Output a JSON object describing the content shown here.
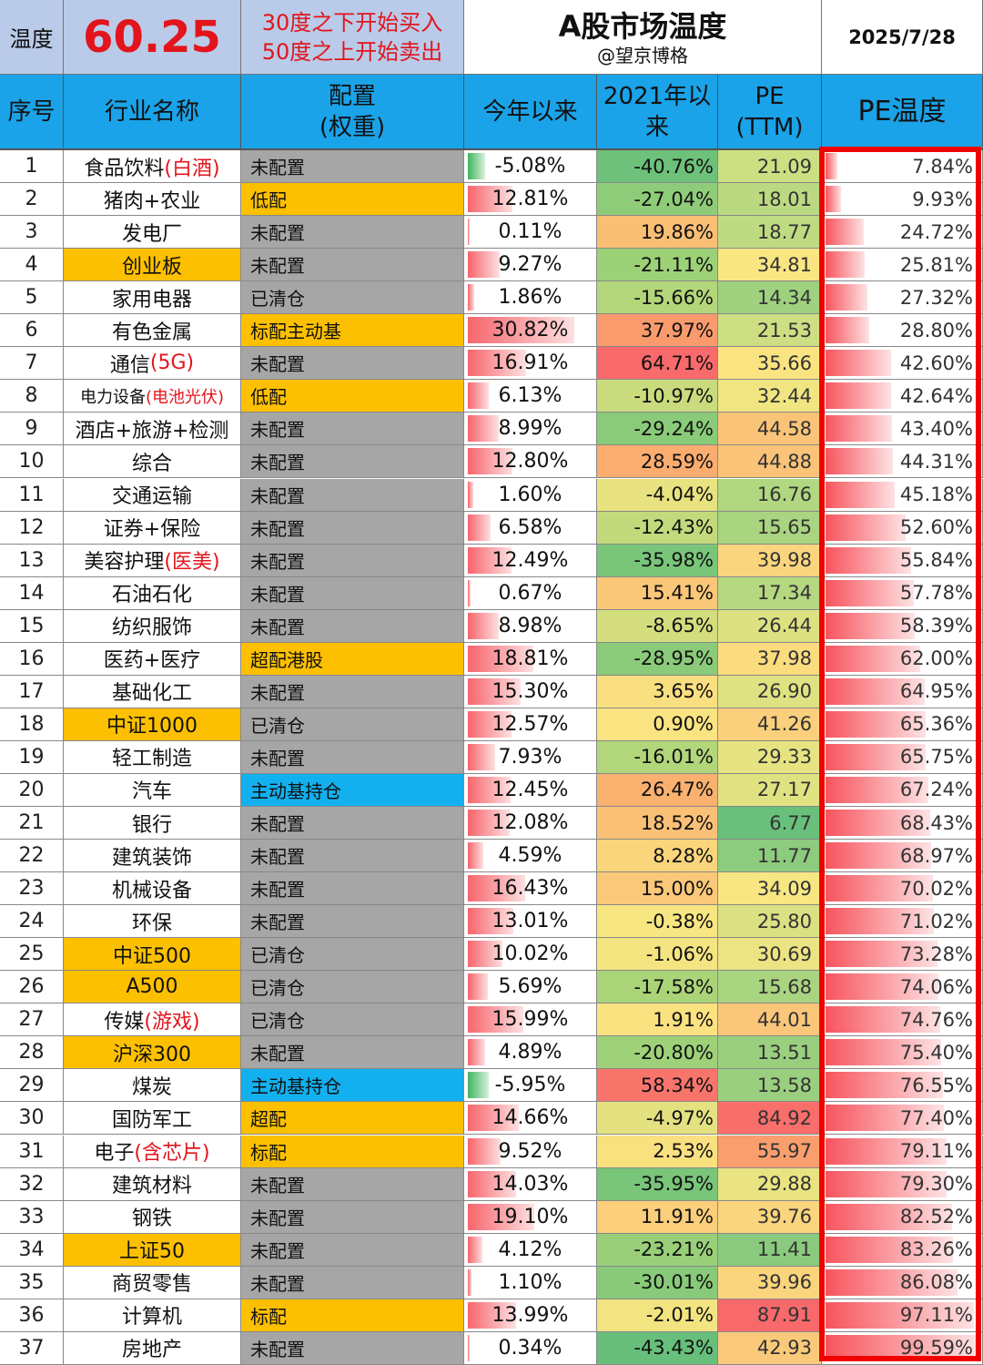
{
  "header": {
    "temp_label": "温度",
    "temp_value": "60.25",
    "rule_buy": "30度之下开始买入",
    "rule_sell": "50度之上开始卖出",
    "title": "A股市场温度",
    "author": "@望京博格",
    "date": "2025/7/28"
  },
  "columns": {
    "idx": "序号",
    "name": "行业名称",
    "alloc_1": "配置",
    "alloc_2": "(权重)",
    "ytd": "今年以来",
    "since2021_1": "2021年以",
    "since2021_2": "来",
    "pe_1": "PE",
    "pe_2": "(TTM)",
    "pe_temp": "PE温度"
  },
  "colors": {
    "header_blue": "#1aa3e8",
    "highlight_orange": "#fdc000",
    "alloc_gray": "#a6a6a6",
    "alloc_blue": "#13b0ef",
    "red_text": "#e3141c",
    "frame_red": "#f00100"
  },
  "rows": [
    {
      "idx": "1",
      "name": "食品饮料",
      "name_red": "(白酒)",
      "hl": false,
      "alloc": "未配置",
      "alloc_color": "gray",
      "ytd": "-5.08%",
      "ytd_val": -5.08,
      "s2021": "-40.76%",
      "s2021_val": -40.76,
      "pe": "21.09",
      "pe_val": 21.09,
      "temp": "7.84%",
      "temp_val": 7.84
    },
    {
      "idx": "2",
      "name": "猪肉+农业",
      "name_red": "",
      "hl": false,
      "alloc": "低配",
      "alloc_color": "orange",
      "ytd": "12.81%",
      "ytd_val": 12.81,
      "s2021": "-27.04%",
      "s2021_val": -27.04,
      "pe": "18.01",
      "pe_val": 18.01,
      "temp": "9.93%",
      "temp_val": 9.93
    },
    {
      "idx": "3",
      "name": "发电厂",
      "name_red": "",
      "hl": false,
      "alloc": "未配置",
      "alloc_color": "gray",
      "ytd": "0.11%",
      "ytd_val": 0.11,
      "s2021": "19.86%",
      "s2021_val": 19.86,
      "pe": "18.77",
      "pe_val": 18.77,
      "temp": "24.72%",
      "temp_val": 24.72
    },
    {
      "idx": "4",
      "name": "创业板",
      "name_red": "",
      "hl": true,
      "alloc": "未配置",
      "alloc_color": "gray",
      "ytd": "9.27%",
      "ytd_val": 9.27,
      "s2021": "-21.11%",
      "s2021_val": -21.11,
      "pe": "34.81",
      "pe_val": 34.81,
      "temp": "25.81%",
      "temp_val": 25.81
    },
    {
      "idx": "5",
      "name": "家用电器",
      "name_red": "",
      "hl": false,
      "alloc": "已清仓",
      "alloc_color": "gray",
      "ytd": "1.86%",
      "ytd_val": 1.86,
      "s2021": "-15.66%",
      "s2021_val": -15.66,
      "pe": "14.34",
      "pe_val": 14.34,
      "temp": "27.32%",
      "temp_val": 27.32
    },
    {
      "idx": "6",
      "name": "有色金属",
      "name_red": "",
      "hl": false,
      "alloc": "标配主动基",
      "alloc_color": "orange",
      "ytd": "30.82%",
      "ytd_val": 30.82,
      "s2021": "37.97%",
      "s2021_val": 37.97,
      "pe": "21.53",
      "pe_val": 21.53,
      "temp": "28.80%",
      "temp_val": 28.8
    },
    {
      "idx": "7",
      "name": "通信",
      "name_red": "(5G)",
      "hl": false,
      "alloc": "未配置",
      "alloc_color": "gray",
      "ytd": "16.91%",
      "ytd_val": 16.91,
      "s2021": "64.71%",
      "s2021_val": 64.71,
      "pe": "35.66",
      "pe_val": 35.66,
      "temp": "42.60%",
      "temp_val": 42.6
    },
    {
      "idx": "8",
      "name": "电力设备",
      "name_red": "(电池光伏)",
      "hl": false,
      "small": true,
      "alloc": "低配",
      "alloc_color": "orange",
      "ytd": "6.13%",
      "ytd_val": 6.13,
      "s2021": "-10.97%",
      "s2021_val": -10.97,
      "pe": "32.44",
      "pe_val": 32.44,
      "temp": "42.64%",
      "temp_val": 42.64
    },
    {
      "idx": "9",
      "name": "酒店+旅游+检测",
      "name_red": "",
      "hl": false,
      "alloc": "未配置",
      "alloc_color": "gray",
      "ytd": "8.99%",
      "ytd_val": 8.99,
      "s2021": "-29.24%",
      "s2021_val": -29.24,
      "pe": "44.58",
      "pe_val": 44.58,
      "temp": "43.40%",
      "temp_val": 43.4
    },
    {
      "idx": "10",
      "name": "综合",
      "name_red": "",
      "hl": false,
      "alloc": "未配置",
      "alloc_color": "gray",
      "ytd": "12.80%",
      "ytd_val": 12.8,
      "s2021": "28.59%",
      "s2021_val": 28.59,
      "pe": "44.88",
      "pe_val": 44.88,
      "temp": "44.31%",
      "temp_val": 44.31
    },
    {
      "idx": "11",
      "name": "交通运输",
      "name_red": "",
      "hl": false,
      "alloc": "未配置",
      "alloc_color": "gray",
      "ytd": "1.60%",
      "ytd_val": 1.6,
      "s2021": "-4.04%",
      "s2021_val": -4.04,
      "pe": "16.76",
      "pe_val": 16.76,
      "temp": "45.18%",
      "temp_val": 45.18
    },
    {
      "idx": "12",
      "name": "证券+保险",
      "name_red": "",
      "hl": false,
      "alloc": "未配置",
      "alloc_color": "gray",
      "ytd": "6.58%",
      "ytd_val": 6.58,
      "s2021": "-12.43%",
      "s2021_val": -12.43,
      "pe": "15.65",
      "pe_val": 15.65,
      "temp": "52.60%",
      "temp_val": 52.6
    },
    {
      "idx": "13",
      "name": "美容护理",
      "name_red": "(医美)",
      "hl": false,
      "alloc": "未配置",
      "alloc_color": "gray",
      "ytd": "12.49%",
      "ytd_val": 12.49,
      "s2021": "-35.98%",
      "s2021_val": -35.98,
      "pe": "39.98",
      "pe_val": 39.98,
      "temp": "55.84%",
      "temp_val": 55.84
    },
    {
      "idx": "14",
      "name": "石油石化",
      "name_red": "",
      "hl": false,
      "alloc": "未配置",
      "alloc_color": "gray",
      "ytd": "0.67%",
      "ytd_val": 0.67,
      "s2021": "15.41%",
      "s2021_val": 15.41,
      "pe": "17.34",
      "pe_val": 17.34,
      "temp": "57.78%",
      "temp_val": 57.78
    },
    {
      "idx": "15",
      "name": "纺织服饰",
      "name_red": "",
      "hl": false,
      "alloc": "未配置",
      "alloc_color": "gray",
      "ytd": "8.98%",
      "ytd_val": 8.98,
      "s2021": "-8.65%",
      "s2021_val": -8.65,
      "pe": "26.44",
      "pe_val": 26.44,
      "temp": "58.39%",
      "temp_val": 58.39
    },
    {
      "idx": "16",
      "name": "医药+医疗",
      "name_red": "",
      "hl": false,
      "alloc": "超配港股",
      "alloc_color": "orange",
      "ytd": "18.81%",
      "ytd_val": 18.81,
      "s2021": "-28.95%",
      "s2021_val": -28.95,
      "pe": "37.98",
      "pe_val": 37.98,
      "temp": "62.00%",
      "temp_val": 62.0
    },
    {
      "idx": "17",
      "name": "基础化工",
      "name_red": "",
      "hl": false,
      "alloc": "未配置",
      "alloc_color": "gray",
      "ytd": "15.30%",
      "ytd_val": 15.3,
      "s2021": "3.65%",
      "s2021_val": 3.65,
      "pe": "26.90",
      "pe_val": 26.9,
      "temp": "64.95%",
      "temp_val": 64.95
    },
    {
      "idx": "18",
      "name": "中证1000",
      "name_red": "",
      "hl": true,
      "alloc": "已清仓",
      "alloc_color": "gray",
      "ytd": "12.57%",
      "ytd_val": 12.57,
      "s2021": "0.90%",
      "s2021_val": 0.9,
      "pe": "41.26",
      "pe_val": 41.26,
      "temp": "65.36%",
      "temp_val": 65.36
    },
    {
      "idx": "19",
      "name": "轻工制造",
      "name_red": "",
      "hl": false,
      "alloc": "未配置",
      "alloc_color": "gray",
      "ytd": "7.93%",
      "ytd_val": 7.93,
      "s2021": "-16.01%",
      "s2021_val": -16.01,
      "pe": "29.33",
      "pe_val": 29.33,
      "temp": "65.75%",
      "temp_val": 65.75
    },
    {
      "idx": "20",
      "name": "汽车",
      "name_red": "",
      "hl": false,
      "alloc": "主动基持仓",
      "alloc_color": "blue",
      "ytd": "12.45%",
      "ytd_val": 12.45,
      "s2021": "26.47%",
      "s2021_val": 26.47,
      "pe": "27.17",
      "pe_val": 27.17,
      "temp": "67.24%",
      "temp_val": 67.24
    },
    {
      "idx": "21",
      "name": "银行",
      "name_red": "",
      "hl": false,
      "alloc": "未配置",
      "alloc_color": "gray",
      "ytd": "12.08%",
      "ytd_val": 12.08,
      "s2021": "18.52%",
      "s2021_val": 18.52,
      "pe": "6.77",
      "pe_val": 6.77,
      "temp": "68.43%",
      "temp_val": 68.43
    },
    {
      "idx": "22",
      "name": "建筑装饰",
      "name_red": "",
      "hl": false,
      "alloc": "未配置",
      "alloc_color": "gray",
      "ytd": "4.59%",
      "ytd_val": 4.59,
      "s2021": "8.28%",
      "s2021_val": 8.28,
      "pe": "11.77",
      "pe_val": 11.77,
      "temp": "68.97%",
      "temp_val": 68.97
    },
    {
      "idx": "23",
      "name": "机械设备",
      "name_red": "",
      "hl": false,
      "alloc": "未配置",
      "alloc_color": "gray",
      "ytd": "16.43%",
      "ytd_val": 16.43,
      "s2021": "15.00%",
      "s2021_val": 15.0,
      "pe": "34.09",
      "pe_val": 34.09,
      "temp": "70.02%",
      "temp_val": 70.02
    },
    {
      "idx": "24",
      "name": "环保",
      "name_red": "",
      "hl": false,
      "alloc": "未配置",
      "alloc_color": "gray",
      "ytd": "13.01%",
      "ytd_val": 13.01,
      "s2021": "-0.38%",
      "s2021_val": -0.38,
      "pe": "25.80",
      "pe_val": 25.8,
      "temp": "71.02%",
      "temp_val": 71.02
    },
    {
      "idx": "25",
      "name": "中证500",
      "name_red": "",
      "hl": true,
      "alloc": "已清仓",
      "alloc_color": "gray",
      "ytd": "10.02%",
      "ytd_val": 10.02,
      "s2021": "-1.06%",
      "s2021_val": -1.06,
      "pe": "30.69",
      "pe_val": 30.69,
      "temp": "73.28%",
      "temp_val": 73.28
    },
    {
      "idx": "26",
      "name": "A500",
      "name_red": "",
      "hl": true,
      "alloc": "已清仓",
      "alloc_color": "gray",
      "ytd": "5.69%",
      "ytd_val": 5.69,
      "s2021": "-17.58%",
      "s2021_val": -17.58,
      "pe": "15.68",
      "pe_val": 15.68,
      "temp": "74.06%",
      "temp_val": 74.06
    },
    {
      "idx": "27",
      "name": "传媒",
      "name_red": "(游戏)",
      "hl": false,
      "alloc": "已清仓",
      "alloc_color": "gray",
      "ytd": "15.99%",
      "ytd_val": 15.99,
      "s2021": "1.91%",
      "s2021_val": 1.91,
      "pe": "44.01",
      "pe_val": 44.01,
      "temp": "74.76%",
      "temp_val": 74.76
    },
    {
      "idx": "28",
      "name": "沪深300",
      "name_red": "",
      "hl": true,
      "alloc": "未配置",
      "alloc_color": "gray",
      "ytd": "4.89%",
      "ytd_val": 4.89,
      "s2021": "-20.80%",
      "s2021_val": -20.8,
      "pe": "13.51",
      "pe_val": 13.51,
      "temp": "75.40%",
      "temp_val": 75.4
    },
    {
      "idx": "29",
      "name": "煤炭",
      "name_red": "",
      "hl": false,
      "alloc": "主动基持仓",
      "alloc_color": "blue",
      "ytd": "-5.95%",
      "ytd_val": -5.95,
      "s2021": "58.34%",
      "s2021_val": 58.34,
      "pe": "13.58",
      "pe_val": 13.58,
      "temp": "76.55%",
      "temp_val": 76.55
    },
    {
      "idx": "30",
      "name": "国防军工",
      "name_red": "",
      "hl": false,
      "alloc": "超配",
      "alloc_color": "orange",
      "ytd": "14.66%",
      "ytd_val": 14.66,
      "s2021": "-4.97%",
      "s2021_val": -4.97,
      "pe": "84.92",
      "pe_val": 84.92,
      "temp": "77.40%",
      "temp_val": 77.4
    },
    {
      "idx": "31",
      "name": "电子",
      "name_red": "(含芯片)",
      "hl": false,
      "alloc": "标配",
      "alloc_color": "orange",
      "ytd": "9.52%",
      "ytd_val": 9.52,
      "s2021": "2.53%",
      "s2021_val": 2.53,
      "pe": "55.97",
      "pe_val": 55.97,
      "temp": "79.11%",
      "temp_val": 79.11
    },
    {
      "idx": "32",
      "name": "建筑材料",
      "name_red": "",
      "hl": false,
      "alloc": "未配置",
      "alloc_color": "gray",
      "ytd": "14.03%",
      "ytd_val": 14.03,
      "s2021": "-35.95%",
      "s2021_val": -35.95,
      "pe": "29.88",
      "pe_val": 29.88,
      "temp": "79.30%",
      "temp_val": 79.3
    },
    {
      "idx": "33",
      "name": "钢铁",
      "name_red": "",
      "hl": false,
      "alloc": "未配置",
      "alloc_color": "gray",
      "ytd": "19.10%",
      "ytd_val": 19.1,
      "s2021": "11.91%",
      "s2021_val": 11.91,
      "pe": "39.76",
      "pe_val": 39.76,
      "temp": "82.52%",
      "temp_val": 82.52
    },
    {
      "idx": "34",
      "name": "上证50",
      "name_red": "",
      "hl": true,
      "alloc": "未配置",
      "alloc_color": "gray",
      "ytd": "4.12%",
      "ytd_val": 4.12,
      "s2021": "-23.21%",
      "s2021_val": -23.21,
      "pe": "11.41",
      "pe_val": 11.41,
      "temp": "83.26%",
      "temp_val": 83.26
    },
    {
      "idx": "35",
      "name": "商贸零售",
      "name_red": "",
      "hl": false,
      "alloc": "未配置",
      "alloc_color": "gray",
      "ytd": "1.10%",
      "ytd_val": 1.1,
      "s2021": "-30.01%",
      "s2021_val": -30.01,
      "pe": "39.96",
      "pe_val": 39.96,
      "temp": "86.08%",
      "temp_val": 86.08
    },
    {
      "idx": "36",
      "name": "计算机",
      "name_red": "",
      "hl": false,
      "alloc": "标配",
      "alloc_color": "orange",
      "ytd": "13.99%",
      "ytd_val": 13.99,
      "s2021": "-2.01%",
      "s2021_val": -2.01,
      "pe": "87.91",
      "pe_val": 87.91,
      "temp": "97.11%",
      "temp_val": 97.11
    },
    {
      "idx": "37",
      "name": "房地产",
      "name_red": "",
      "hl": false,
      "alloc": "未配置",
      "alloc_color": "gray",
      "ytd": "0.34%",
      "ytd_val": 0.34,
      "s2021": "-43.43%",
      "s2021_val": -43.43,
      "pe": "42.93",
      "pe_val": 42.93,
      "temp": "99.59%",
      "temp_val": 99.59
    }
  ]
}
